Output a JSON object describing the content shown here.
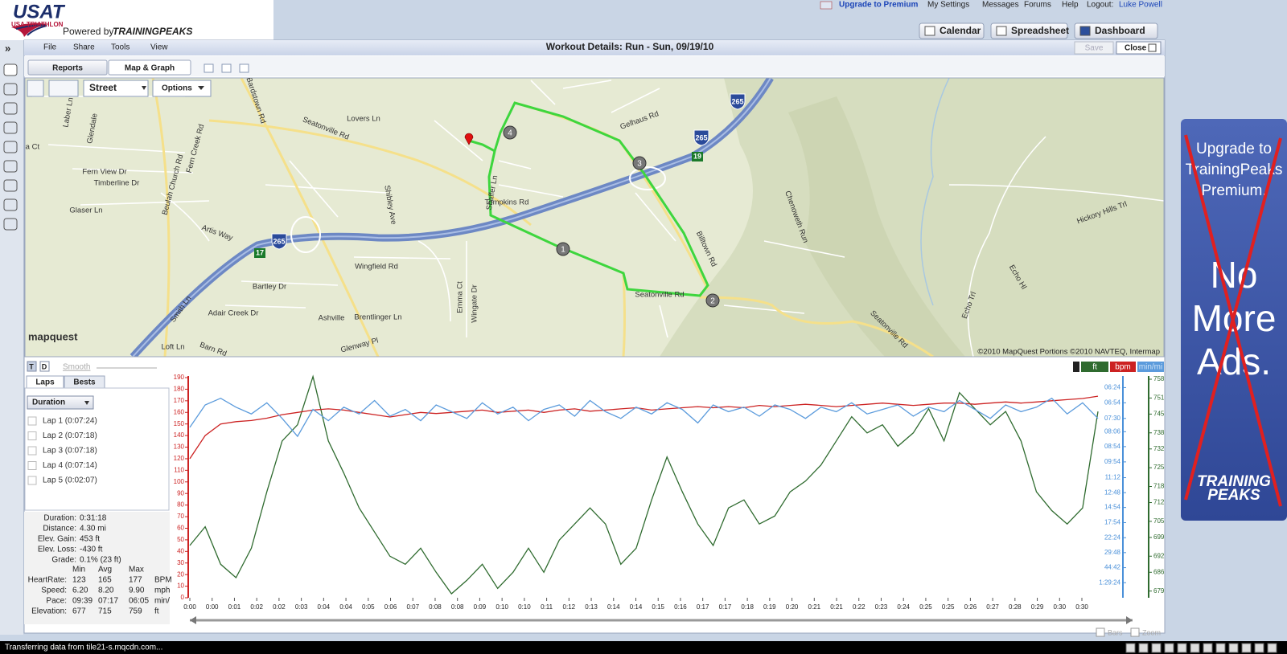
{
  "header": {
    "logo": "USAT",
    "logo_sub": "USA TRIATHLON",
    "powered": "Powered by",
    "brand": "TRAININGPEAKS",
    "links": [
      "Upgrade to Premium",
      "My Settings",
      "Messages",
      "Forums",
      "Help",
      "Logout:",
      "Luke Powell"
    ],
    "tabs": [
      "Calendar",
      "Spreadsheet",
      "Dashboard"
    ]
  },
  "menu": [
    "File",
    "Share",
    "Tools",
    "View"
  ],
  "window_title": "Workout Details: Run - Sun, 09/19/10",
  "buttons": [
    "Save",
    "Close"
  ],
  "subtabs": [
    "Reports",
    "Map & Graph"
  ],
  "map": {
    "style": "Street",
    "options": "Options",
    "labels": [
      "Lovers Ln",
      "Seatonville Rd",
      "Bardstown Rd",
      "Fern Creek Rd",
      "Beulah Church Rd",
      "Fern View Dr",
      "Timberline Dr",
      "Glaser Ln",
      "Artis Way",
      "Wingfield Rd",
      "Bartley Dr",
      "Adair Creek Dr",
      "Ashville",
      "Brentlinger Ln",
      "Glenway Pl",
      "Emma Ct",
      "Wingate Dr",
      "Shibley Ave",
      "Shaffer Ln",
      "Tompkins Rd",
      "Gelhaus Rd",
      "Billtown Rd",
      "Seatonville Rd",
      "Seatonville Rd",
      "Chenoweth Run",
      "Hickory Hills Trl",
      "Echo Trl",
      "Echo Hl",
      "Laber Ln",
      "Glendale",
      "Smith Ln",
      "Loft Ln",
      "Barn Rd",
      "Ila Ct"
    ],
    "shields": [
      "265",
      "265",
      "265"
    ],
    "exits": [
      "19",
      "17"
    ],
    "laps": [
      "1",
      "2",
      "3",
      "4"
    ],
    "brand": "mapquest",
    "copyright": "©2010 MapQuest  Portions ©2010 NAVTEQ, Intermap"
  },
  "graph_controls": {
    "t": "T",
    "d": "D",
    "smooth": "Smooth",
    "tabs": [
      "Laps",
      "Bests"
    ],
    "sort": "Duration",
    "laps": [
      "Lap 1 (0:07:24)",
      "Lap 2 (0:07:18)",
      "Lap 3 (0:07:18)",
      "Lap 4 (0:07:14)",
      "Lap 5 (0:02:07)"
    ]
  },
  "summary": [
    {
      "label": "Duration:",
      "value": "0:31:18"
    },
    {
      "label": "Distance:",
      "value": "4.30 mi"
    },
    {
      "label": "Elev. Gain:",
      "value": "453 ft"
    },
    {
      "label": "Elev. Loss:",
      "value": "-430 ft"
    },
    {
      "label": "Grade:",
      "value": "0.1% (23 ft)"
    }
  ],
  "stats": {
    "columns": [
      "Min",
      "Avg",
      "Max"
    ],
    "rows": [
      [
        "HeartRate:",
        "123",
        "165",
        "177",
        "BPM"
      ],
      [
        "Speed:",
        "6.20",
        "8.20",
        "9.90",
        "mph"
      ],
      [
        "Pace:",
        "09:39",
        "07:17",
        "06:05",
        "min/"
      ],
      [
        "Elevation:",
        "677",
        "715",
        "759",
        "ft"
      ]
    ]
  },
  "chart_data": {
    "type": "line",
    "xticks": [
      "0:00",
      "0:00",
      "0:01",
      "0:02",
      "0:02",
      "0:03",
      "0:04",
      "0:04",
      "0:05",
      "0:06",
      "0:07",
      "0:08",
      "0:08",
      "0:09",
      "0:10",
      "0:10",
      "0:11",
      "0:12",
      "0:13",
      "0:14",
      "0:14",
      "0:15",
      "0:16",
      "0:17",
      "0:17",
      "0:18",
      "0:19",
      "0:20",
      "0:21",
      "0:21",
      "0:22",
      "0:23",
      "0:24",
      "0:25",
      "0:25",
      "0:26",
      "0:27",
      "0:28",
      "0:29",
      "0:30",
      "0:30"
    ],
    "ylim": [
      0,
      190
    ],
    "yticks": [
      0,
      10,
      20,
      30,
      40,
      50,
      60,
      70,
      80,
      90,
      100,
      110,
      120,
      130,
      140,
      150,
      160,
      170,
      180,
      190
    ],
    "y2lim": [
      0,
      9.82
    ],
    "y2ticks": [
      {
        "value": 9.375,
        "label": "06:24"
      },
      {
        "value": 8.696,
        "label": "06:54"
      },
      {
        "value": 8,
        "label": "07:30"
      },
      {
        "value": 7.407,
        "label": "08:06"
      },
      {
        "value": 6.742,
        "label": "08:54"
      },
      {
        "value": 6.061,
        "label": "09:54"
      },
      {
        "value": 5.357,
        "label": "11:12"
      },
      {
        "value": 4.688,
        "label": "12:48"
      },
      {
        "value": 4.027,
        "label": "14:54"
      },
      {
        "value": 3.352,
        "label": "17:54"
      },
      {
        "value": 2.679,
        "label": "22:24"
      },
      {
        "value": 2.013,
        "label": "29:48"
      },
      {
        "value": 1.342,
        "label": "44:42"
      },
      {
        "value": 0.671,
        "label": "1:29:24"
      }
    ],
    "y3lim": [
      676.5,
      758.6
    ],
    "y3ticks": [
      758,
      751,
      745,
      738,
      732,
      725,
      718,
      712,
      705,
      699,
      692,
      686,
      679
    ],
    "series": [
      {
        "name": "ft",
        "color": "#2f6b2f",
        "axis": "y3",
        "values": [
          696,
          703,
          689,
          684,
          695,
          716,
          735,
          741,
          759,
          735,
          723,
          710,
          701,
          692,
          689,
          695,
          686,
          678,
          683,
          689,
          680,
          686,
          695,
          686,
          698,
          704,
          710,
          704,
          689,
          695,
          713,
          729,
          716,
          704,
          696,
          710,
          713,
          704,
          707,
          716,
          720,
          726,
          735,
          744,
          738,
          741,
          733,
          738,
          747,
          735,
          753,
          747,
          741,
          746,
          735,
          716,
          709,
          704,
          710,
          746
        ]
      },
      {
        "name": "bpm",
        "color": "#cc2222",
        "axis": "y",
        "values": [
          120,
          140,
          150,
          152,
          153,
          155,
          158,
          160,
          162,
          163,
          162,
          160,
          158,
          156,
          158,
          160,
          159,
          160,
          161,
          162,
          160,
          161,
          162,
          160,
          162,
          163,
          161,
          162,
          163,
          164,
          162,
          163,
          164,
          165,
          164,
          165,
          164,
          166,
          165,
          166,
          167,
          166,
          165,
          166,
          167,
          168,
          167,
          166,
          167,
          168,
          168,
          167,
          168,
          169,
          168,
          169,
          170,
          171,
          172,
          174
        ]
      },
      {
        "name": "min/mi",
        "color": "#5b9bdc",
        "axis": "y2",
        "values": [
          7.6,
          8.6,
          8.9,
          8.5,
          8.2,
          8.7,
          8.0,
          7.2,
          8.4,
          7.9,
          8.5,
          8.2,
          8.8,
          8.1,
          8.4,
          7.9,
          8.6,
          8.3,
          8.0,
          8.7,
          8.2,
          8.5,
          7.9,
          8.4,
          8.6,
          8.1,
          8.8,
          8.3,
          8.0,
          8.5,
          8.2,
          8.7,
          8.4,
          7.8,
          8.6,
          8.3,
          8.5,
          8.1,
          8.6,
          8.4,
          8.0,
          8.5,
          8.3,
          8.7,
          8.2,
          8.4,
          8.6,
          8.1,
          8.5,
          8.3,
          8.8,
          8.4,
          8.0,
          8.6,
          8.3,
          8.5,
          8.9,
          8.2,
          8.7,
          8.0
        ]
      }
    ]
  },
  "footer": {
    "options": [
      "Bars",
      "Zoom"
    ],
    "status": "Transferring data from tile21-s.mqcdn.com..."
  },
  "ad": {
    "lines": [
      "Upgrade to",
      "TrainingPeaks",
      "Premium."
    ],
    "big": [
      "No",
      "More",
      "Ads."
    ],
    "brand": [
      "TRAINING",
      "PEAKS"
    ]
  }
}
